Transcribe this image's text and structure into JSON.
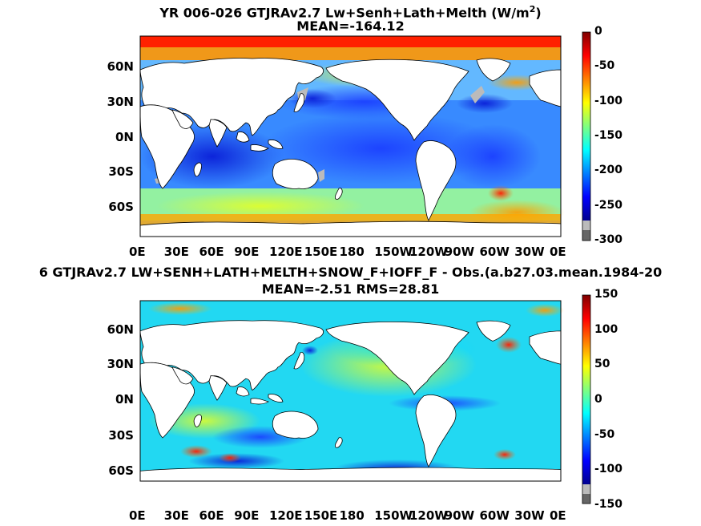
{
  "chart_data": [
    {
      "type": "heatmap",
      "title_text": "YR 006-026 GTJRAv2.7 Lw+Senh+Lath+Melth (W/m",
      "title_sup": "2",
      "title_end": ")",
      "subtitle": "MEAN=-164.12",
      "xlabel": "",
      "ylabel": "",
      "x_ticks": [
        "0E",
        "30E",
        "60E",
        "90E",
        "120E",
        "150E",
        "180",
        "150W",
        "120W",
        "90W",
        "60W",
        "30W",
        "0E"
      ],
      "y_ticks": [
        "60N",
        "30N",
        "0N",
        "30S",
        "60S"
      ],
      "colorbar": {
        "min": -300,
        "max": 0,
        "ticks": [
          "0",
          "-50",
          "-100",
          "-150",
          "-200",
          "-250",
          "-300"
        ],
        "colormap": "jet"
      },
      "mean": -164.12
    },
    {
      "type": "heatmap",
      "title": "6 GTJRAv2.7 LW+SENH+LATH+MELTH+SNOW_F+IOFF_F - Obs.(a.b27.03.mean.1984-20",
      "subtitle": "MEAN=-2.51 RMS=28.81",
      "xlabel": "",
      "ylabel": "",
      "x_ticks": [
        "0E",
        "30E",
        "60E",
        "90E",
        "120E",
        "150E",
        "180",
        "150W",
        "120W",
        "90W",
        "60W",
        "30W",
        "0E"
      ],
      "y_ticks": [
        "60N",
        "30N",
        "0N",
        "30S",
        "60S"
      ],
      "colorbar": {
        "min": -150,
        "max": 150,
        "ticks": [
          "150",
          "100",
          "50",
          "0",
          "-50",
          "-100",
          "-150"
        ],
        "colormap": "jet"
      },
      "mean": -2.51,
      "rms": 28.81
    }
  ],
  "colors": {
    "land": "#ffffff",
    "coast": "#000000",
    "sea_ice_gray": "#bbbbbb"
  }
}
